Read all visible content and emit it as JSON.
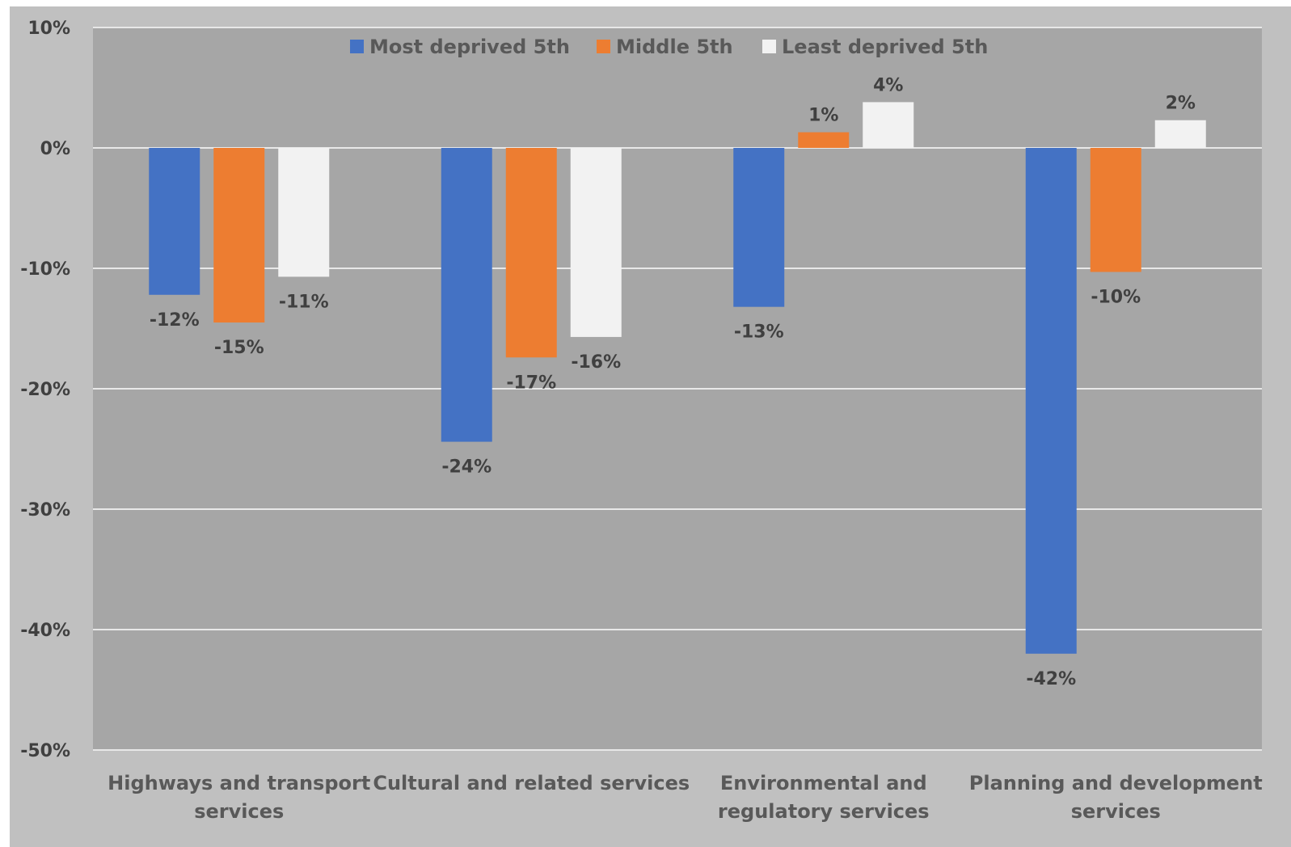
{
  "chart_data": {
    "type": "bar",
    "title": "",
    "xlabel": "",
    "ylabel": "",
    "ylim": [
      -50,
      10
    ],
    "yticks": [
      10,
      0,
      -10,
      -20,
      -30,
      -40,
      -50
    ],
    "tick_suffix": "%",
    "grid": true,
    "legend_position": "top-center",
    "categories": [
      [
        "Highways and transport",
        "services"
      ],
      [
        "Cultural and related services"
      ],
      [
        "Environmental and",
        "regulatory services"
      ],
      [
        "Planning and development",
        "services"
      ]
    ],
    "series": [
      {
        "name": "Most deprived 5th",
        "color": "#4472c4",
        "values": [
          -12.2,
          -24.4,
          -13.2,
          -42.0
        ],
        "labels": [
          "-12%",
          "-24%",
          "-13%",
          "-42%"
        ]
      },
      {
        "name": "Middle 5th",
        "color": "#ed7d31",
        "values": [
          -14.5,
          -17.4,
          1.3,
          -10.3
        ],
        "labels": [
          "-15%",
          "-17%",
          "1%",
          "-10%"
        ]
      },
      {
        "name": "Least deprived 5th",
        "color": "#f2f2f2",
        "values": [
          -10.7,
          -15.7,
          3.8,
          2.3
        ],
        "labels": [
          "-11%",
          "-16%",
          "4%",
          "2%"
        ]
      }
    ]
  },
  "colors": {
    "frame_background": "#c0c0c0",
    "plot_background": "#a6a6a6",
    "gridline": "#e8e8e8"
  }
}
